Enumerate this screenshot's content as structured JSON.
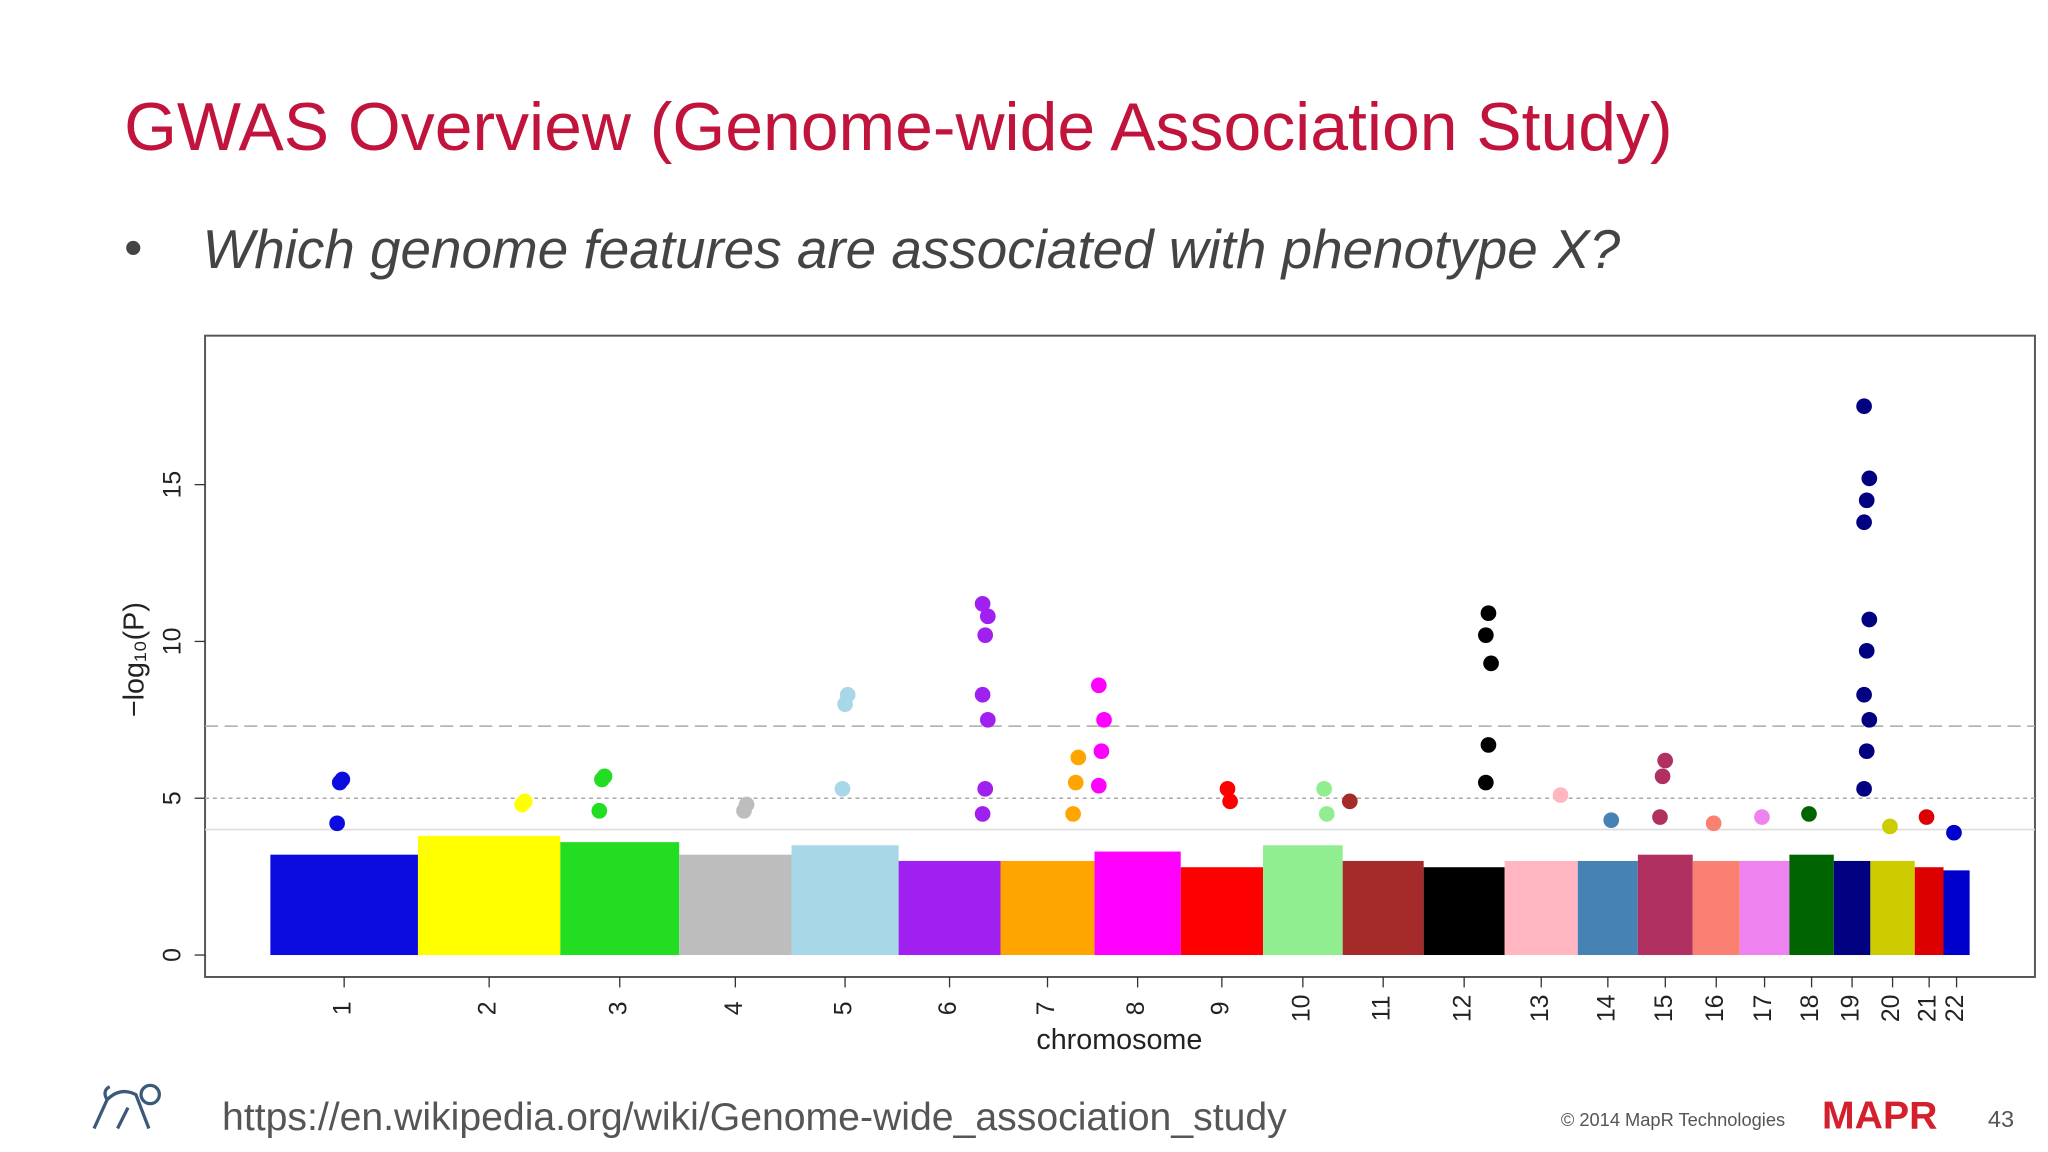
{
  "title": "GWAS Overview (Genome-wide Association Study)",
  "bullet": "Which genome features are associated with phenotype X?",
  "chart_data": {
    "type": "manhattan",
    "ylabel": "−log₁₀(P)",
    "xlabel": "chromosome",
    "ylim": [
      -0.7,
      19.75
    ],
    "yticks": [
      0,
      5,
      10,
      15
    ],
    "threshold_lines": [
      7.3,
      5,
      4
    ],
    "categories": [
      "1",
      "2",
      "3",
      "4",
      "5",
      "6",
      "7",
      "8",
      "9",
      "10",
      "11",
      "12",
      "13",
      "14",
      "15",
      "16",
      "17",
      "18",
      "19",
      "20",
      "21",
      "22"
    ],
    "colors": [
      "#0b0be0",
      "#ffff00",
      "#22dd22",
      "#bdbdbd",
      "#a8d8e8",
      "#a020f0",
      "#ffa500",
      "#ff00ff",
      "#ff0000",
      "#90ee90",
      "#a52a2a",
      "#000000",
      "#ffb6c1",
      "#4682b4",
      "#b03060",
      "#fa8072",
      "#ee82ee",
      "#006400",
      "#000080",
      "#cccc00",
      "#dd0000",
      "#0000cd"
    ],
    "bulk": [
      3.2,
      3.8,
      3.6,
      3.2,
      3.5,
      3.0,
      3.0,
      3.3,
      2.8,
      3.5,
      3.0,
      2.8,
      3.0,
      3.0,
      3.2,
      3.0,
      3.0,
      3.2,
      3.0,
      3.0,
      2.8,
      2.7
    ],
    "hits": [
      [
        4.2,
        5.5,
        5.6
      ],
      [
        4.8,
        4.9
      ],
      [
        4.6,
        5.6,
        5.7
      ],
      [
        4.6,
        4.8
      ],
      [
        5.3,
        8.0,
        8.3
      ],
      [
        4.5,
        5.3,
        7.5,
        8.3,
        10.2,
        10.8,
        11.2
      ],
      [
        4.5,
        5.5,
        6.3
      ],
      [
        5.4,
        6.5,
        7.5,
        8.6
      ],
      [
        5.3,
        4.9
      ],
      [
        5.3,
        4.5
      ],
      [
        4.9
      ],
      [
        5.5,
        6.7,
        9.3,
        10.2,
        10.9
      ],
      [
        5.1
      ],
      [
        4.3
      ],
      [
        4.4,
        5.7,
        6.2
      ],
      [
        4.2
      ],
      [
        4.4
      ],
      [
        4.5
      ],
      [
        5.3,
        6.5,
        7.5,
        8.3,
        9.7,
        10.7,
        13.8,
        14.5,
        15.2,
        17.5
      ],
      [
        4.1
      ],
      [
        4.4
      ],
      [
        3.9
      ]
    ]
  },
  "footer": {
    "url": "https://en.wikipedia.org/wiki/Genome-wide_association_study",
    "copyright": "© 2014 MapR Technologies",
    "logo": "MAPR",
    "page": "43"
  }
}
